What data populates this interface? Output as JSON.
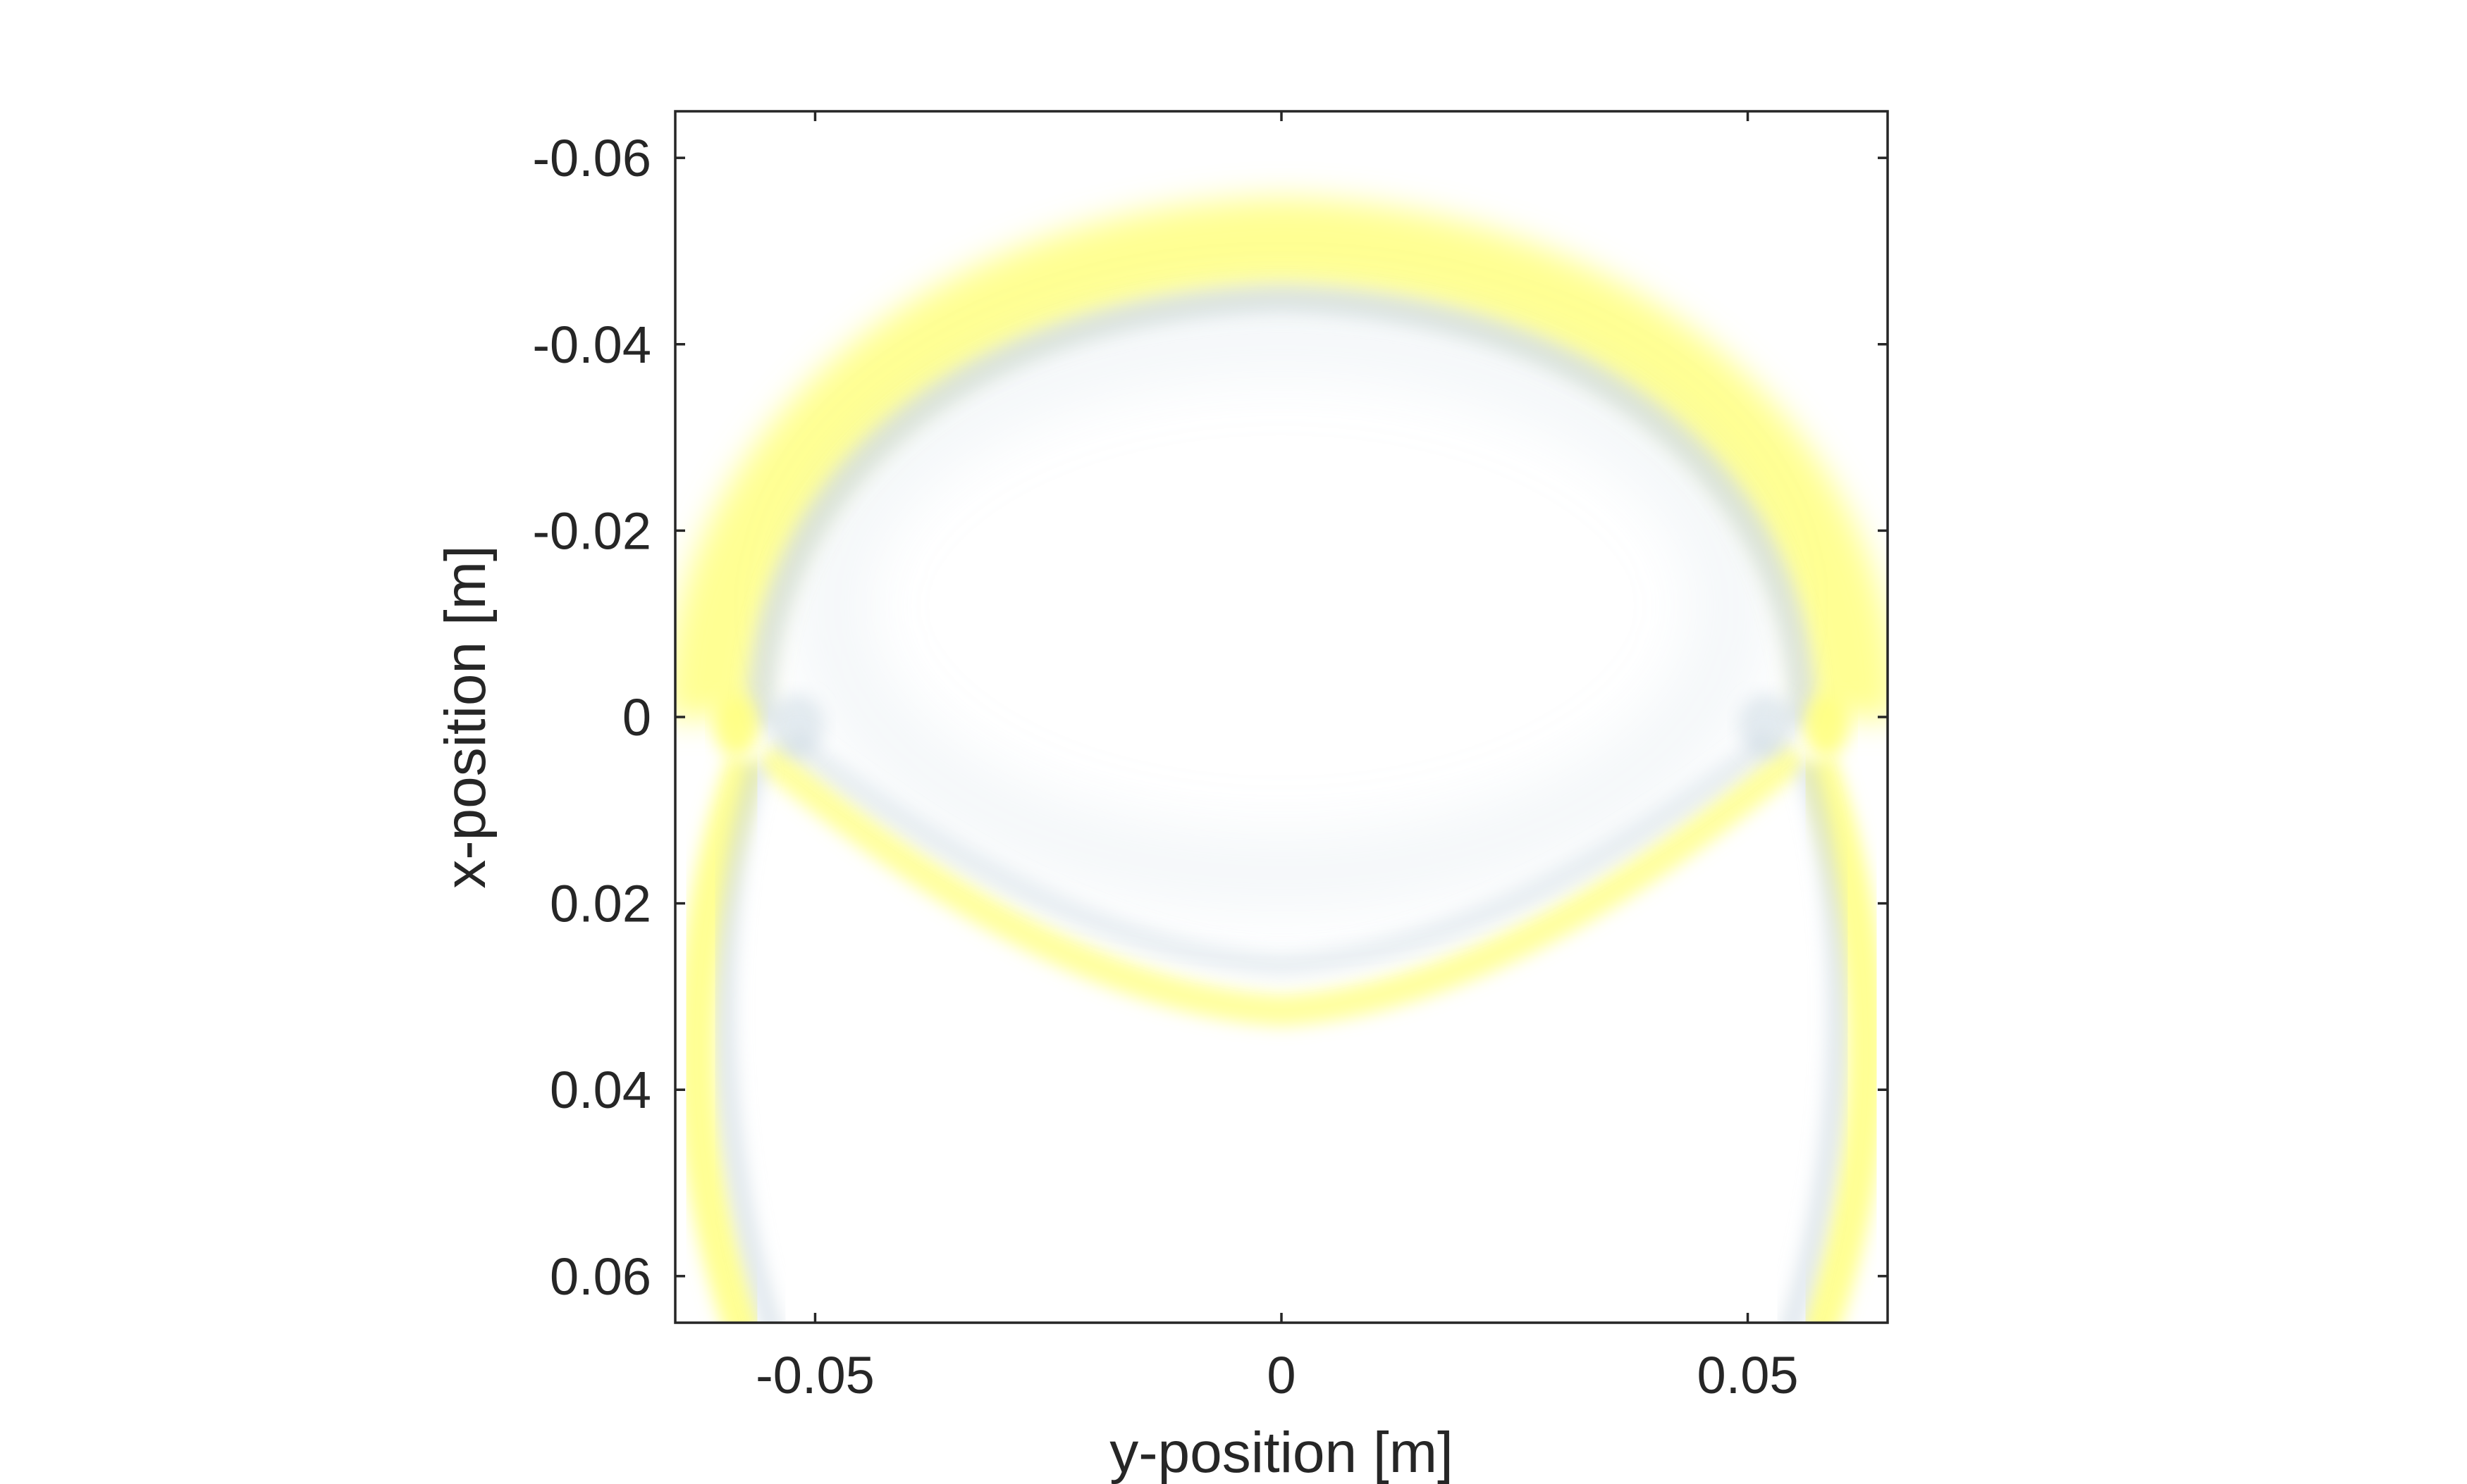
{
  "chart_data": {
    "type": "heatmap",
    "title": "",
    "xlabel": "y-position [m]",
    "ylabel": "x-position [m]",
    "xlim": [
      -0.065,
      0.065
    ],
    "ylim": [
      -0.065,
      0.065
    ],
    "y_axis_reversed": true,
    "grid": false,
    "legend": "none",
    "colorbar": "none",
    "x_ticks": [
      {
        "value": -0.05,
        "label": "-0.05"
      },
      {
        "value": 0,
        "label": "0"
      },
      {
        "value": 0.05,
        "label": "0.05"
      }
    ],
    "y_ticks": [
      {
        "value": -0.06,
        "label": "-0.06"
      },
      {
        "value": -0.04,
        "label": "-0.04"
      },
      {
        "value": -0.02,
        "label": "-0.02"
      },
      {
        "value": 0,
        "label": "0"
      },
      {
        "value": 0.02,
        "label": "0.02"
      },
      {
        "value": 0.04,
        "label": "0.04"
      },
      {
        "value": 0.06,
        "label": "0.06"
      }
    ],
    "colors": {
      "positive": "#ffff80",
      "negative": "#c4d2de",
      "background": "#ffffff",
      "axis": "#262626"
    }
  }
}
